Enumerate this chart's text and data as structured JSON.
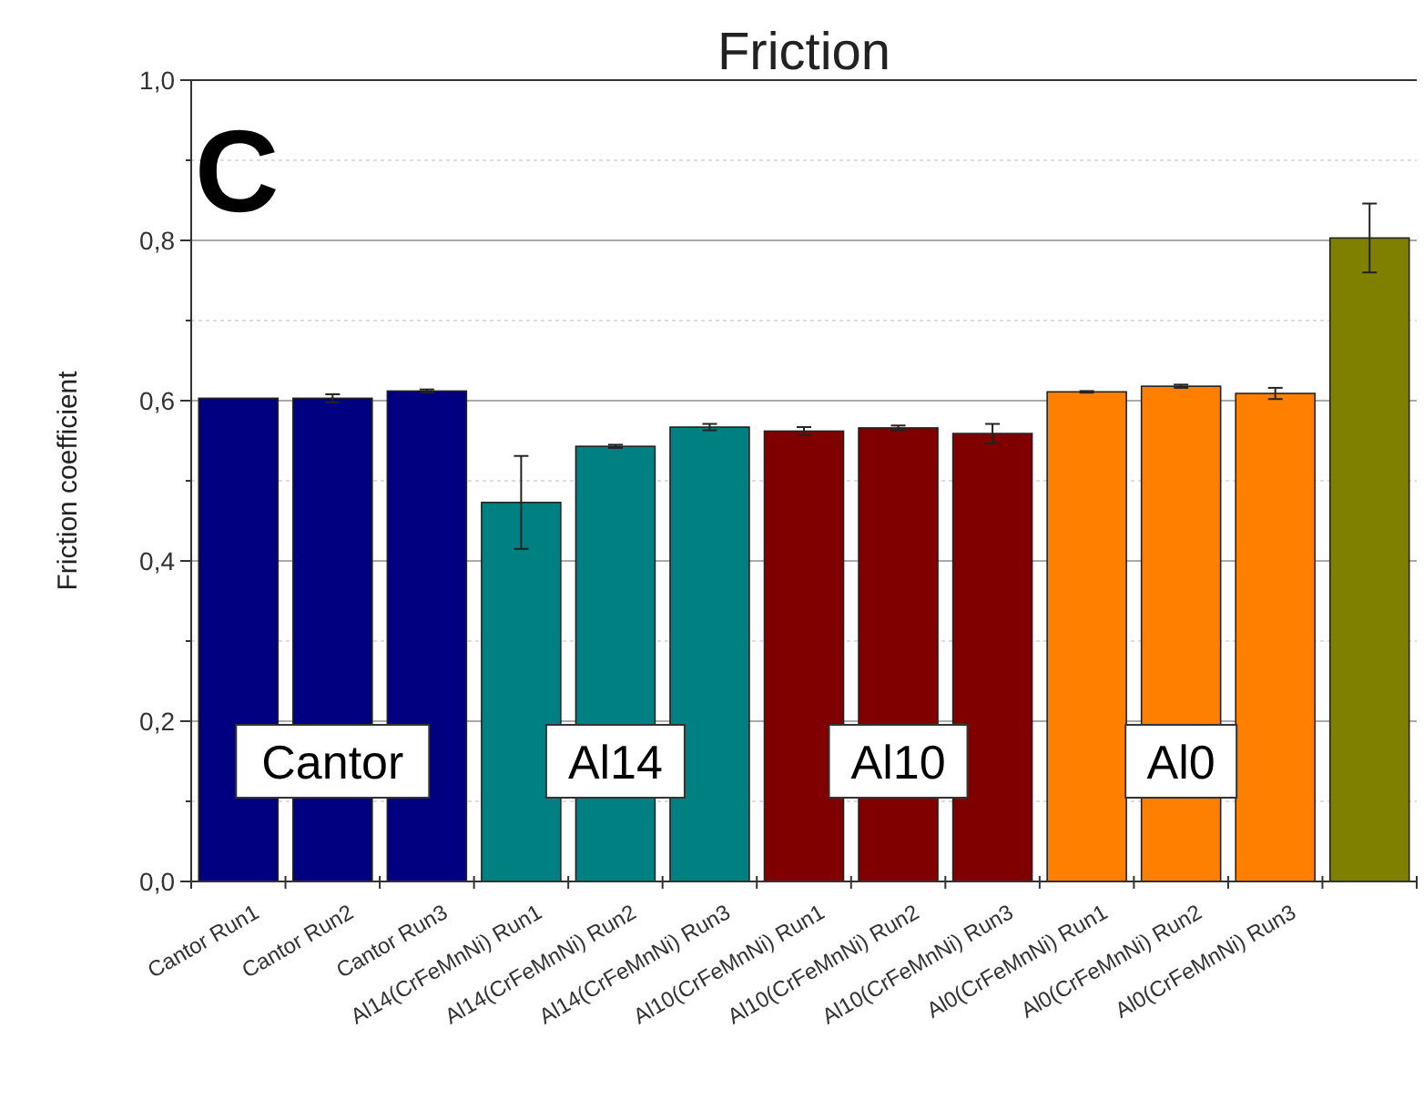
{
  "chart_data": {
    "type": "bar",
    "title": "Friction",
    "ylabel": "Friction coefficient",
    "categories": [
      "Cantor Run1",
      "Cantor Run2",
      "Cantor Run3",
      "Al14(CrFeMnNi) Run1",
      "Al14(CrFeMnNi) Run2",
      "Al14(CrFeMnNi) Run3",
      "Al10(CrFeMnNi) Run1",
      "Al10(CrFeMnNi) Run2",
      "Al10(CrFeMnNi) Run3",
      "Al0(CrFeMnNi) Run1",
      "Al0(CrFeMnNi) Run2",
      "Al0(CrFeMnNi) Run3",
      null
    ],
    "values": [
      0.603,
      0.603,
      0.612,
      0.473,
      0.543,
      0.567,
      0.562,
      0.566,
      0.559,
      0.611,
      0.618,
      0.609,
      0.803
    ],
    "errors": [
      null,
      0.005,
      0.002,
      0.058,
      0.002,
      0.004,
      0.005,
      0.003,
      0.012,
      0.001,
      0.002,
      0.007,
      0.043
    ],
    "colors": [
      "#000080",
      "#000080",
      "#000080",
      "#008080",
      "#008080",
      "#008080",
      "#800000",
      "#800000",
      "#800000",
      "#ff8000",
      "#ff8000",
      "#ff8000",
      "#808000"
    ],
    "ylim": [
      0,
      1
    ],
    "yticks": [
      {
        "value": 0,
        "label": "0,0"
      },
      {
        "value": 0.1,
        "label": null
      },
      {
        "value": 0.2,
        "label": "0,2"
      },
      {
        "value": 0.3,
        "label": null
      },
      {
        "value": 0.4,
        "label": "0,4"
      },
      {
        "value": 0.5,
        "label": null
      },
      {
        "value": 0.6,
        "label": "0,6"
      },
      {
        "value": 0.7,
        "label": null
      },
      {
        "value": 0.8,
        "label": "0,8"
      },
      {
        "value": 0.9,
        "label": null
      },
      {
        "value": 1,
        "label": "1,0"
      }
    ],
    "grid": "y",
    "annotations": [
      "C",
      {
        "text": "Cantor",
        "x": "Cantor Run2",
        "y": 0.15
      },
      {
        "text": "Al14",
        "x": "Al14(CrFeMnNi) Run2",
        "y": 0.15
      },
      {
        "text": "Al10",
        "x": "Al10(CrFeMnNi) Run2",
        "y": 0.15
      },
      {
        "text": "Al0",
        "x": "Al0(CrFeMnNi) Run2",
        "y": 0.15
      }
    ]
  }
}
